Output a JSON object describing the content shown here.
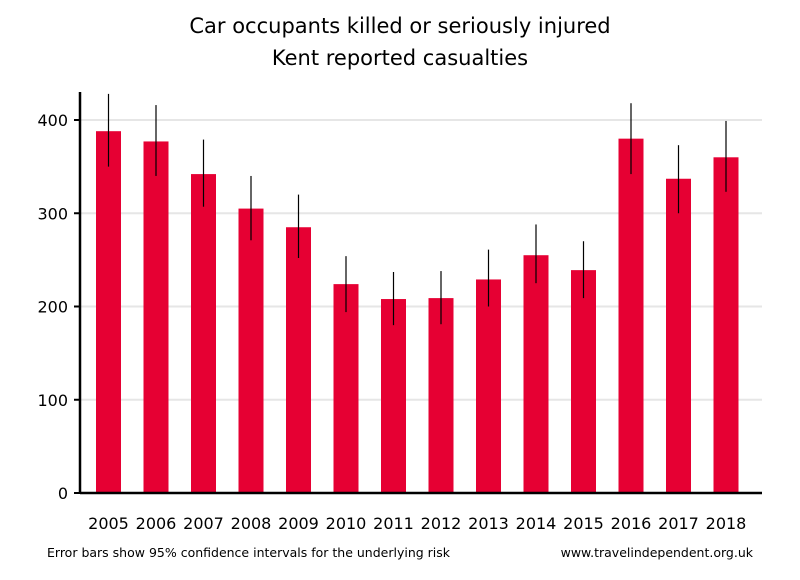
{
  "chart_data": {
    "type": "bar",
    "title": "Car occupants killed or seriously injured",
    "subtitle": "Kent reported casualties",
    "xlabel": "",
    "ylabel": "",
    "categories": [
      "2005",
      "2006",
      "2007",
      "2008",
      "2009",
      "2010",
      "2011",
      "2012",
      "2013",
      "2014",
      "2015",
      "2016",
      "2017",
      "2018"
    ],
    "values": [
      388,
      377,
      342,
      305,
      285,
      224,
      208,
      209,
      229,
      255,
      239,
      380,
      337,
      360
    ],
    "error_low": [
      350,
      340,
      307,
      271,
      252,
      194,
      180,
      181,
      200,
      225,
      209,
      342,
      300,
      323
    ],
    "error_high": [
      428,
      416,
      379,
      340,
      320,
      254,
      237,
      238,
      261,
      288,
      270,
      418,
      373,
      399
    ],
    "ylim": [
      0,
      400
    ],
    "yticks": [
      0,
      100,
      200,
      300,
      400
    ],
    "grid": true,
    "bar_color": "#e60033"
  },
  "footer": {
    "note": "Error bars show 95% confidence intervals for the underlying risk",
    "source": "www.travelindependent.org.uk"
  }
}
